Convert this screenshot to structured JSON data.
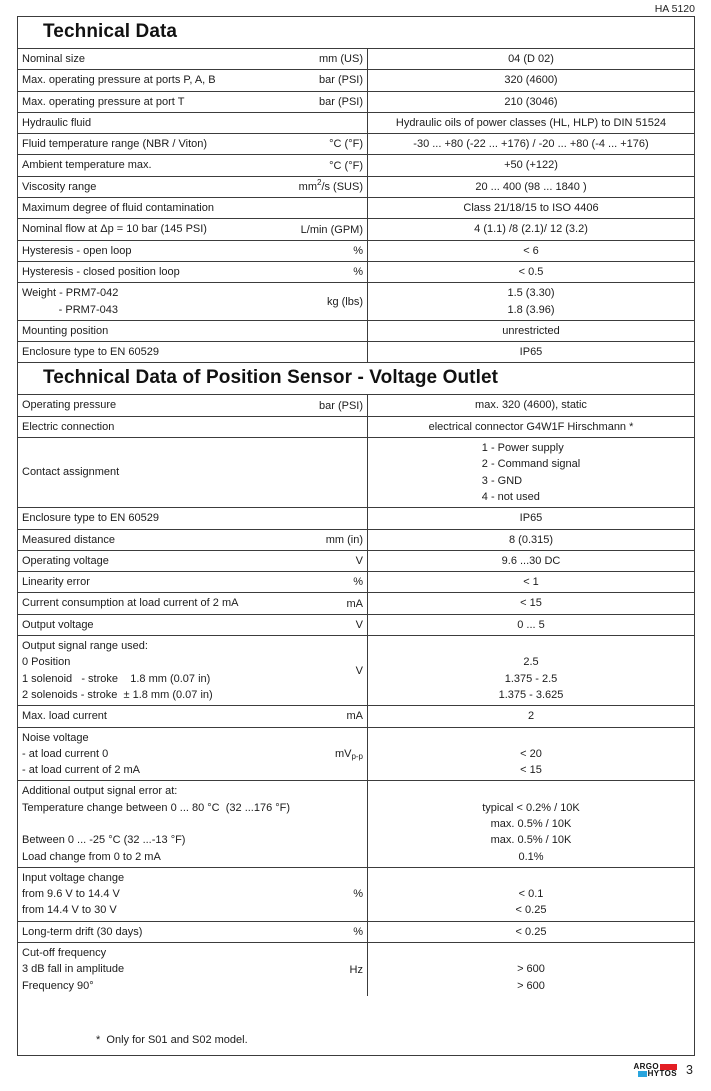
{
  "page": {
    "doc_code": "HA 5120",
    "page_number": "3",
    "footnote": "*  Only for S01 and S02 model."
  },
  "logo": {
    "line1": "ARGO",
    "line2": "HYTOS",
    "red_color": "#e31e24",
    "blue_color": "#29a5de"
  },
  "table1": {
    "title": "Technical Data",
    "rows": [
      {
        "label": [
          "Nominal size"
        ],
        "unit": [
          {
            "t": "mm (US)"
          }
        ],
        "value": [
          "04 (D 02)"
        ]
      },
      {
        "label": [
          "Max. operating pressure at ports P, A, B"
        ],
        "unit": [
          {
            "t": "bar (PSI)"
          }
        ],
        "value": [
          "320 (4600)"
        ]
      },
      {
        "label": [
          "Max. operating pressure at port T"
        ],
        "unit": [
          {
            "t": "bar (PSI)"
          }
        ],
        "value": [
          "210 (3046)"
        ]
      },
      {
        "label": [
          "Hydraulic fluid"
        ],
        "unit": [],
        "value": [
          "Hydraulic oils of power classes (HL, HLP) to DIN 51524"
        ]
      },
      {
        "label": [
          "Fluid temperature range (NBR / Viton)"
        ],
        "unit": [
          {
            "t": "°C (°F)"
          }
        ],
        "value": [
          "-30 ... +80 (-22 ... +176) / -20 ... +80 (-4 ... +176)"
        ]
      },
      {
        "label": [
          "Ambient temperature max."
        ],
        "unit": [
          {
            "t": "°C (°F)"
          }
        ],
        "value": [
          "+50 (+122)"
        ]
      },
      {
        "label": [
          "Viscosity range"
        ],
        "unit": [
          {
            "t": "mm"
          },
          {
            "t": "2",
            "s": "sup"
          },
          {
            "t": "/s (SUS)"
          }
        ],
        "value": [
          "20 ... 400 (98 ... 1840 )"
        ]
      },
      {
        "label": [
          "Maximum degree of fluid contamination"
        ],
        "unit": [],
        "value": [
          "Class 21/18/15 to ISO 4406"
        ]
      },
      {
        "label": [
          "Nominal flow at Δp = 10 bar (145 PSI)"
        ],
        "unit": [
          {
            "t": "L/min (GPM)"
          }
        ],
        "value": [
          "4 (1.1) /8 (2.1)/ 12 (3.2)"
        ]
      },
      {
        "label": [
          "Hysteresis - open loop"
        ],
        "unit": [
          {
            "t": "%"
          }
        ],
        "value": [
          "< 6"
        ]
      },
      {
        "label": [
          "Hysteresis - closed position loop"
        ],
        "unit": [
          {
            "t": "%"
          }
        ],
        "value": [
          "< 0.5"
        ]
      },
      {
        "label": [
          "Weight - PRM7-042",
          "            - PRM7-043"
        ],
        "unit": [
          {
            "t": "kg (lbs)"
          }
        ],
        "value": [
          "1.5 (3.30)",
          "1.8 (3.96)"
        ]
      },
      {
        "label": [
          "Mounting position"
        ],
        "unit": [],
        "value": [
          "unrestricted"
        ]
      },
      {
        "label": [
          "Enclosure type to EN 60529"
        ],
        "unit": [],
        "value": [
          "IP65"
        ]
      }
    ]
  },
  "table2": {
    "title": "Technical Data of Position Sensor - Voltage Outlet",
    "rows": [
      {
        "label": [
          "Operating pressure"
        ],
        "unit": [
          {
            "t": "bar (PSI)"
          }
        ],
        "value": [
          "max. 320 (4600), static"
        ]
      },
      {
        "label": [
          "Electric connection"
        ],
        "unit": [],
        "value": [
          "electrical connector G4W1F Hirschmann *"
        ]
      },
      {
        "label": [
          "Contact assignment"
        ],
        "lv": "center",
        "unit": [],
        "vblock": true,
        "value": [
          "1 - Power supply",
          "2 - Command signal",
          "3 - GND",
          "4 - not used"
        ]
      },
      {
        "label": [
          "Enclosure type to EN 60529"
        ],
        "unit": [],
        "value": [
          "IP65"
        ]
      },
      {
        "label": [
          "Measured distance"
        ],
        "unit": [
          {
            "t": "mm (in)"
          }
        ],
        "value": [
          "8 (0.315)"
        ]
      },
      {
        "label": [
          "Operating voltage"
        ],
        "unit": [
          {
            "t": "V"
          }
        ],
        "value": [
          "9.6 ...30 DC"
        ]
      },
      {
        "label": [
          "Linearity error"
        ],
        "unit": [
          {
            "t": "%"
          }
        ],
        "value": [
          "< 1"
        ]
      },
      {
        "label": [
          "Current consumption at load current of 2 mA"
        ],
        "unit": [
          {
            "t": "mA"
          }
        ],
        "value": [
          "< 15"
        ]
      },
      {
        "label": [
          "Output voltage"
        ],
        "unit": [
          {
            "t": "V"
          }
        ],
        "value": [
          "0 ... 5"
        ]
      },
      {
        "label": [
          "Output signal range used:",
          "0 Position",
          "1 solenoid   - stroke    1.8 mm (0.07 in)",
          "2 solenoids - stroke  ± 1.8 mm (0.07 in)"
        ],
        "unit": [
          {
            "t": "V"
          }
        ],
        "value": [
          "",
          "2.5",
          "1.375 - 2.5",
          "1.375 - 3.625"
        ]
      },
      {
        "label": [
          "Max. load current"
        ],
        "unit": [
          {
            "t": "mA"
          }
        ],
        "value": [
          "2"
        ]
      },
      {
        "label": [
          "Noise voltage",
          "- at load current 0",
          "- at load current of 2 mA"
        ],
        "unit": [
          {
            "t": "mV"
          },
          {
            "t": "p-p",
            "s": "sub"
          }
        ],
        "value": [
          "",
          "< 20",
          "< 15"
        ]
      },
      {
        "label": [
          "Additional output signal error at:",
          "Temperature change between 0 ... 80 °C  (32 ...176 °F)",
          "",
          "Between 0 ... -25 °C (32 ...-13 °F)",
          "Load change from 0 to 2 mA"
        ],
        "unit": [],
        "value": [
          "",
          "typical < 0.2% / 10K",
          "max. 0.5% / 10K",
          "max. 0.5% / 10K",
          "0.1%"
        ]
      },
      {
        "label": [
          "Input voltage change",
          "from 9.6 V to 14.4 V",
          "from 14.4 V to 30 V"
        ],
        "unit": [
          {
            "t": "%"
          }
        ],
        "value": [
          "",
          "< 0.1",
          "< 0.25"
        ]
      },
      {
        "label": [
          "Long-term drift (30 days)"
        ],
        "unit": [
          {
            "t": "%"
          }
        ],
        "value": [
          "< 0.25"
        ]
      },
      {
        "label": [
          "Cut-off frequency",
          "3 dB fall in amplitude",
          "Frequency 90°"
        ],
        "unit": [
          {
            "t": "Hz"
          }
        ],
        "value": [
          "",
          "> 600",
          "> 600"
        ]
      }
    ]
  }
}
